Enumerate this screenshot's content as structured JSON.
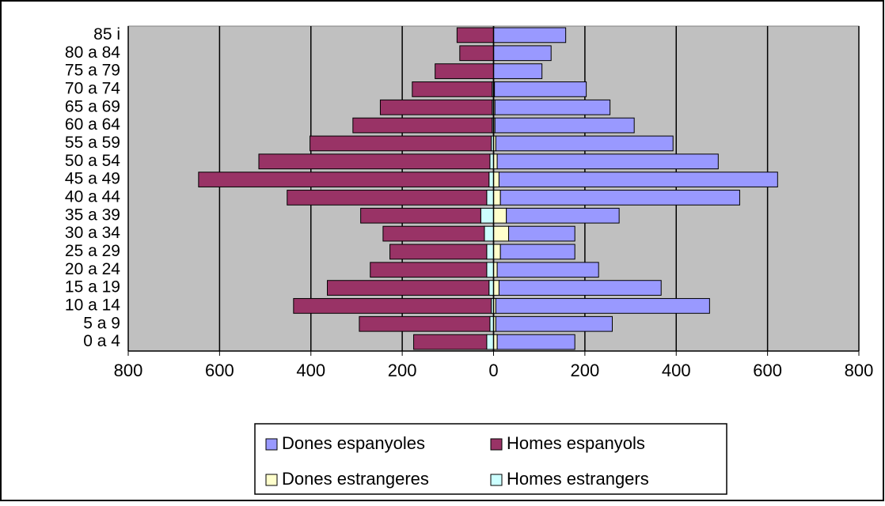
{
  "chart_data": {
    "type": "bar",
    "orientation": "horizontal",
    "stacked": true,
    "categories": [
      "0 a 4",
      "5 a 9",
      "10 a 14",
      "15 a 19",
      "20 a 24",
      "25 a 29",
      "30 a 34",
      "35 a 39",
      "40 a 44",
      "45 a 49",
      "50 a 54",
      "55 a 59",
      "60 a 64",
      "65 a 69",
      "70 a 74",
      "75 a 79",
      "80 a 84",
      "85 i"
    ],
    "series": [
      {
        "name": "Dones espanyoles",
        "color": "#9999ff",
        "values": [
          170,
          255,
          468,
          355,
          222,
          163,
          145,
          247,
          524,
          610,
          484,
          388,
          305,
          252,
          201,
          106,
          126,
          158
        ]
      },
      {
        "name": "Homes espanyols",
        "color": "#993366",
        "values": [
          -160,
          -286,
          -433,
          -354,
          -255,
          -212,
          -222,
          -263,
          -437,
          -636,
          -506,
          -397,
          -305,
          -245,
          -175,
          -128,
          -74,
          -80
        ]
      },
      {
        "name": "Dones estrangeres",
        "color": "#ffffcc",
        "values": [
          8,
          5,
          5,
          12,
          8,
          15,
          33,
          28,
          15,
          12,
          8,
          5,
          3,
          3,
          2,
          0,
          0,
          0
        ]
      },
      {
        "name": "Homes estrangers",
        "color": "#ccffff",
        "values": [
          -15,
          -8,
          -5,
          -10,
          -15,
          -15,
          -20,
          -28,
          -15,
          -10,
          -8,
          -5,
          -3,
          -3,
          -3,
          0,
          0,
          0
        ]
      }
    ],
    "xlim": [
      -800,
      800
    ],
    "xticks": [
      {
        "value": -800,
        "label": "800"
      },
      {
        "value": -600,
        "label": "600"
      },
      {
        "value": -400,
        "label": "400"
      },
      {
        "value": -200,
        "label": "200"
      },
      0,
      200,
      400,
      600,
      800
    ],
    "grid": true,
    "legend": "bottom"
  }
}
